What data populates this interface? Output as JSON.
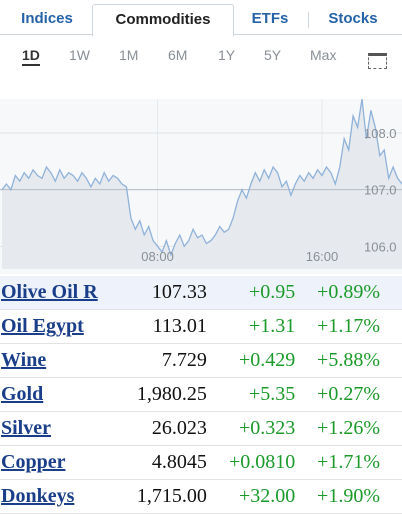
{
  "tabs": [
    {
      "label": "Indices",
      "active": false
    },
    {
      "label": "Commodities",
      "active": true
    },
    {
      "label": "ETFs",
      "active": false
    },
    {
      "label": "Stocks",
      "active": false
    }
  ],
  "ranges": [
    "1D",
    "1W",
    "1M",
    "6M",
    "1Y",
    "5Y",
    "Max"
  ],
  "active_range": "1D",
  "expand_icon": "expand-chart-icon",
  "chart_data": {
    "type": "area",
    "x_ticks": [
      "08:00",
      "16:00"
    ],
    "y_ticks": [
      "108.0",
      "107.0",
      "106.0"
    ],
    "ylim": [
      105.6,
      108.6
    ],
    "reference_line": 107.0,
    "values": [
      107.0,
      107.1,
      107.0,
      107.25,
      107.15,
      107.3,
      107.2,
      107.35,
      107.25,
      107.2,
      107.4,
      107.3,
      107.15,
      107.35,
      107.2,
      107.3,
      107.25,
      107.15,
      107.3,
      107.2,
      107.05,
      107.2,
      107.1,
      107.3,
      107.15,
      107.25,
      107.2,
      107.1,
      107.05,
      106.5,
      106.3,
      106.45,
      106.2,
      106.35,
      106.1,
      106.0,
      105.9,
      106.1,
      105.85,
      106.05,
      106.2,
      106.0,
      106.1,
      106.3,
      106.15,
      106.2,
      106.05,
      106.1,
      106.2,
      106.35,
      106.25,
      106.3,
      106.5,
      106.8,
      107.0,
      106.85,
      107.1,
      107.3,
      107.15,
      107.35,
      107.2,
      107.4,
      107.3,
      107.05,
      107.15,
      106.9,
      107.1,
      107.25,
      107.15,
      107.3,
      107.2,
      107.35,
      107.25,
      107.4,
      107.3,
      107.1,
      107.4,
      107.9,
      107.7,
      108.3,
      108.1,
      108.6,
      107.9,
      108.4,
      108.1,
      107.6,
      107.7,
      107.2,
      107.4,
      107.2,
      107.1
    ],
    "grid": true,
    "color": "#8fb2d9",
    "fill": "#e6eaef"
  },
  "quotes": [
    {
      "name": "Olive Oil R",
      "price": "107.33",
      "change": "+0.95",
      "percent": "+0.89%"
    },
    {
      "name": "Oil Egypt",
      "price": "113.01",
      "change": "+1.31",
      "percent": "+1.17%"
    },
    {
      "name": "Wine",
      "price": "7.729",
      "change": "+0.429",
      "percent": "+5.88%"
    },
    {
      "name": "Gold",
      "price": "1,980.25",
      "change": "+5.35",
      "percent": "+0.27%"
    },
    {
      "name": "Silver",
      "price": "26.023",
      "change": "+0.323",
      "percent": "+1.26%"
    },
    {
      "name": "Copper",
      "price": "4.8045",
      "change": "+0.0810",
      "percent": "+1.71%"
    },
    {
      "name": "Donkeys",
      "price": "1,715.00",
      "change": "+32.00",
      "percent": "+1.90%"
    }
  ],
  "colors": {
    "positive": "#1b9a2a",
    "link": "#1a3e8a",
    "tab_link": "#2563a8"
  }
}
